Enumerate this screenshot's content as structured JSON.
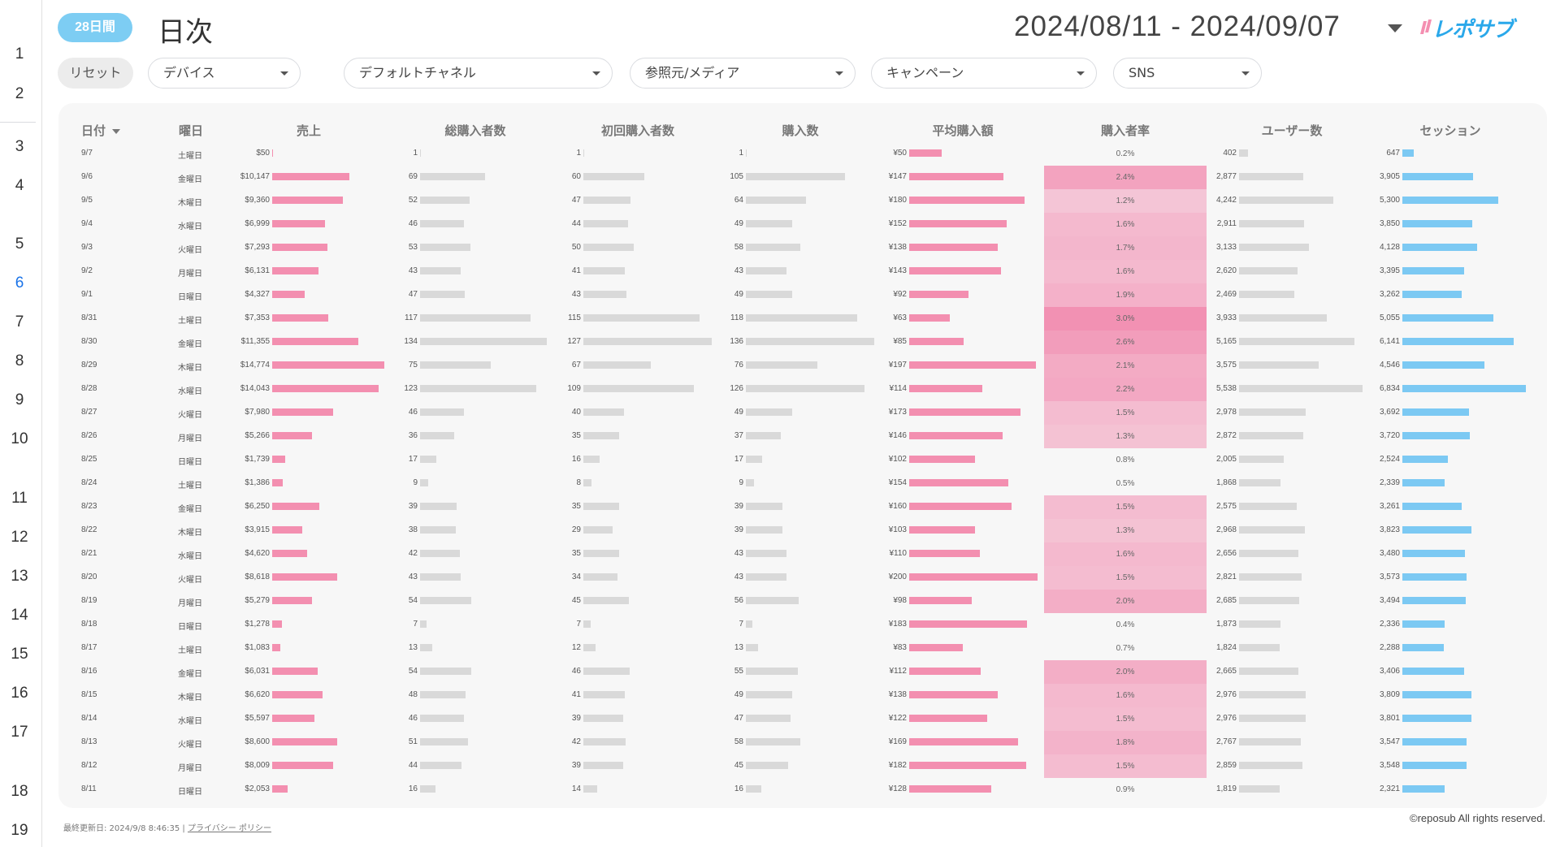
{
  "gutter_rows": [
    "1",
    "2",
    "3",
    "4",
    "5",
    "6",
    "7",
    "8",
    "9",
    "10",
    "11",
    "12",
    "13",
    "14",
    "15",
    "16",
    "17",
    "18",
    "19"
  ],
  "active_row": "6",
  "header": {
    "period_badge": "28日間",
    "title": "日次",
    "date_range": "2024/08/11 - 2024/09/07",
    "logo_text": "レポサブ"
  },
  "filters": {
    "reset_label": "リセット",
    "device": "デバイス",
    "default_channel": "デフォルトチャネル",
    "source_medium": "参照元/メディア",
    "campaign": "キャンペーン",
    "sns": "SNS"
  },
  "table": {
    "headers": {
      "date": "日付",
      "weekday": "曜日",
      "sales": "売上",
      "total_buyers": "総購入者数",
      "first_buyers": "初回購入者数",
      "purchases": "購入数",
      "avg_order": "平均購入額",
      "purchase_rate": "購入者率",
      "users": "ユーザー数",
      "sessions": "セッション"
    },
    "max": {
      "sales": 14774,
      "total_buyers": 134,
      "first_buyers": 127,
      "purchases": 136,
      "avg_order": 200,
      "users": 5538,
      "sessions": 6834,
      "rate": 3.0
    },
    "colors": {
      "pink_bar": "#f38fb0",
      "gray_bar": "#d9d9d9",
      "blue_bar": "#7cc9f3",
      "rate_heat": "#f07aa4"
    },
    "rows": [
      {
        "date": "9/7",
        "weekday": "土曜日",
        "sales": "$50",
        "sales_v": 50,
        "total_buyers": "1",
        "total_buyers_v": 1,
        "first_buyers": "1",
        "first_buyers_v": 1,
        "purchases": "1",
        "purchases_v": 1,
        "avg_order": "¥50",
        "avg_order_v": 50,
        "rate": "0.2%",
        "rate_v": 0.2,
        "users": "402",
        "users_v": 402,
        "sessions": "647",
        "sessions_v": 647
      },
      {
        "date": "9/6",
        "weekday": "金曜日",
        "sales": "$10,147",
        "sales_v": 10147,
        "total_buyers": "69",
        "total_buyers_v": 69,
        "first_buyers": "60",
        "first_buyers_v": 60,
        "purchases": "105",
        "purchases_v": 105,
        "avg_order": "¥147",
        "avg_order_v": 147,
        "rate": "2.4%",
        "rate_v": 2.4,
        "users": "2,877",
        "users_v": 2877,
        "sessions": "3,905",
        "sessions_v": 3905
      },
      {
        "date": "9/5",
        "weekday": "木曜日",
        "sales": "$9,360",
        "sales_v": 9360,
        "total_buyers": "52",
        "total_buyers_v": 52,
        "first_buyers": "47",
        "first_buyers_v": 47,
        "purchases": "64",
        "purchases_v": 64,
        "avg_order": "¥180",
        "avg_order_v": 180,
        "rate": "1.2%",
        "rate_v": 1.2,
        "users": "4,242",
        "users_v": 4242,
        "sessions": "5,300",
        "sessions_v": 5300
      },
      {
        "date": "9/4",
        "weekday": "水曜日",
        "sales": "$6,999",
        "sales_v": 6999,
        "total_buyers": "46",
        "total_buyers_v": 46,
        "first_buyers": "44",
        "first_buyers_v": 44,
        "purchases": "49",
        "purchases_v": 49,
        "avg_order": "¥152",
        "avg_order_v": 152,
        "rate": "1.6%",
        "rate_v": 1.6,
        "users": "2,911",
        "users_v": 2911,
        "sessions": "3,850",
        "sessions_v": 3850
      },
      {
        "date": "9/3",
        "weekday": "火曜日",
        "sales": "$7,293",
        "sales_v": 7293,
        "total_buyers": "53",
        "total_buyers_v": 53,
        "first_buyers": "50",
        "first_buyers_v": 50,
        "purchases": "58",
        "purchases_v": 58,
        "avg_order": "¥138",
        "avg_order_v": 138,
        "rate": "1.7%",
        "rate_v": 1.7,
        "users": "3,133",
        "users_v": 3133,
        "sessions": "4,128",
        "sessions_v": 4128
      },
      {
        "date": "9/2",
        "weekday": "月曜日",
        "sales": "$6,131",
        "sales_v": 6131,
        "total_buyers": "43",
        "total_buyers_v": 43,
        "first_buyers": "41",
        "first_buyers_v": 41,
        "purchases": "43",
        "purchases_v": 43,
        "avg_order": "¥143",
        "avg_order_v": 143,
        "rate": "1.6%",
        "rate_v": 1.6,
        "users": "2,620",
        "users_v": 2620,
        "sessions": "3,395",
        "sessions_v": 3395
      },
      {
        "date": "9/1",
        "weekday": "日曜日",
        "sales": "$4,327",
        "sales_v": 4327,
        "total_buyers": "47",
        "total_buyers_v": 47,
        "first_buyers": "43",
        "first_buyers_v": 43,
        "purchases": "49",
        "purchases_v": 49,
        "avg_order": "¥92",
        "avg_order_v": 92,
        "rate": "1.9%",
        "rate_v": 1.9,
        "users": "2,469",
        "users_v": 2469,
        "sessions": "3,262",
        "sessions_v": 3262
      },
      {
        "date": "8/31",
        "weekday": "土曜日",
        "sales": "$7,353",
        "sales_v": 7353,
        "total_buyers": "117",
        "total_buyers_v": 117,
        "first_buyers": "115",
        "first_buyers_v": 115,
        "purchases": "118",
        "purchases_v": 118,
        "avg_order": "¥63",
        "avg_order_v": 63,
        "rate": "3.0%",
        "rate_v": 3.0,
        "users": "3,933",
        "users_v": 3933,
        "sessions": "5,055",
        "sessions_v": 5055
      },
      {
        "date": "8/30",
        "weekday": "金曜日",
        "sales": "$11,355",
        "sales_v": 11355,
        "total_buyers": "134",
        "total_buyers_v": 134,
        "first_buyers": "127",
        "first_buyers_v": 127,
        "purchases": "136",
        "purchases_v": 136,
        "avg_order": "¥85",
        "avg_order_v": 85,
        "rate": "2.6%",
        "rate_v": 2.6,
        "users": "5,165",
        "users_v": 5165,
        "sessions": "6,141",
        "sessions_v": 6141
      },
      {
        "date": "8/29",
        "weekday": "木曜日",
        "sales": "$14,774",
        "sales_v": 14774,
        "total_buyers": "75",
        "total_buyers_v": 75,
        "first_buyers": "67",
        "first_buyers_v": 67,
        "purchases": "76",
        "purchases_v": 76,
        "avg_order": "¥197",
        "avg_order_v": 197,
        "rate": "2.1%",
        "rate_v": 2.1,
        "users": "3,575",
        "users_v": 3575,
        "sessions": "4,546",
        "sessions_v": 4546
      },
      {
        "date": "8/28",
        "weekday": "水曜日",
        "sales": "$14,043",
        "sales_v": 14043,
        "total_buyers": "123",
        "total_buyers_v": 123,
        "first_buyers": "109",
        "first_buyers_v": 109,
        "purchases": "126",
        "purchases_v": 126,
        "avg_order": "¥114",
        "avg_order_v": 114,
        "rate": "2.2%",
        "rate_v": 2.2,
        "users": "5,538",
        "users_v": 5538,
        "sessions": "6,834",
        "sessions_v": 6834
      },
      {
        "date": "8/27",
        "weekday": "火曜日",
        "sales": "$7,980",
        "sales_v": 7980,
        "total_buyers": "46",
        "total_buyers_v": 46,
        "first_buyers": "40",
        "first_buyers_v": 40,
        "purchases": "49",
        "purchases_v": 49,
        "avg_order": "¥173",
        "avg_order_v": 173,
        "rate": "1.5%",
        "rate_v": 1.5,
        "users": "2,978",
        "users_v": 2978,
        "sessions": "3,692",
        "sessions_v": 3692
      },
      {
        "date": "8/26",
        "weekday": "月曜日",
        "sales": "$5,266",
        "sales_v": 5266,
        "total_buyers": "36",
        "total_buyers_v": 36,
        "first_buyers": "35",
        "first_buyers_v": 35,
        "purchases": "37",
        "purchases_v": 37,
        "avg_order": "¥146",
        "avg_order_v": 146,
        "rate": "1.3%",
        "rate_v": 1.3,
        "users": "2,872",
        "users_v": 2872,
        "sessions": "3,720",
        "sessions_v": 3720
      },
      {
        "date": "8/25",
        "weekday": "日曜日",
        "sales": "$1,739",
        "sales_v": 1739,
        "total_buyers": "17",
        "total_buyers_v": 17,
        "first_buyers": "16",
        "first_buyers_v": 16,
        "purchases": "17",
        "purchases_v": 17,
        "avg_order": "¥102",
        "avg_order_v": 102,
        "rate": "0.8%",
        "rate_v": 0.8,
        "users": "2,005",
        "users_v": 2005,
        "sessions": "2,524",
        "sessions_v": 2524
      },
      {
        "date": "8/24",
        "weekday": "土曜日",
        "sales": "$1,386",
        "sales_v": 1386,
        "total_buyers": "9",
        "total_buyers_v": 9,
        "first_buyers": "8",
        "first_buyers_v": 8,
        "purchases": "9",
        "purchases_v": 9,
        "avg_order": "¥154",
        "avg_order_v": 154,
        "rate": "0.5%",
        "rate_v": 0.5,
        "users": "1,868",
        "users_v": 1868,
        "sessions": "2,339",
        "sessions_v": 2339
      },
      {
        "date": "8/23",
        "weekday": "金曜日",
        "sales": "$6,250",
        "sales_v": 6250,
        "total_buyers": "39",
        "total_buyers_v": 39,
        "first_buyers": "35",
        "first_buyers_v": 35,
        "purchases": "39",
        "purchases_v": 39,
        "avg_order": "¥160",
        "avg_order_v": 160,
        "rate": "1.5%",
        "rate_v": 1.5,
        "users": "2,575",
        "users_v": 2575,
        "sessions": "3,261",
        "sessions_v": 3261
      },
      {
        "date": "8/22",
        "weekday": "木曜日",
        "sales": "$3,915",
        "sales_v": 3915,
        "total_buyers": "38",
        "total_buyers_v": 38,
        "first_buyers": "29",
        "first_buyers_v": 29,
        "purchases": "39",
        "purchases_v": 39,
        "avg_order": "¥103",
        "avg_order_v": 103,
        "rate": "1.3%",
        "rate_v": 1.3,
        "users": "2,968",
        "users_v": 2968,
        "sessions": "3,823",
        "sessions_v": 3823
      },
      {
        "date": "8/21",
        "weekday": "水曜日",
        "sales": "$4,620",
        "sales_v": 4620,
        "total_buyers": "42",
        "total_buyers_v": 42,
        "first_buyers": "35",
        "first_buyers_v": 35,
        "purchases": "43",
        "purchases_v": 43,
        "avg_order": "¥110",
        "avg_order_v": 110,
        "rate": "1.6%",
        "rate_v": 1.6,
        "users": "2,656",
        "users_v": 2656,
        "sessions": "3,480",
        "sessions_v": 3480
      },
      {
        "date": "8/20",
        "weekday": "火曜日",
        "sales": "$8,618",
        "sales_v": 8618,
        "total_buyers": "43",
        "total_buyers_v": 43,
        "first_buyers": "34",
        "first_buyers_v": 34,
        "purchases": "43",
        "purchases_v": 43,
        "avg_order": "¥200",
        "avg_order_v": 200,
        "rate": "1.5%",
        "rate_v": 1.5,
        "users": "2,821",
        "users_v": 2821,
        "sessions": "3,573",
        "sessions_v": 3573
      },
      {
        "date": "8/19",
        "weekday": "月曜日",
        "sales": "$5,279",
        "sales_v": 5279,
        "total_buyers": "54",
        "total_buyers_v": 54,
        "first_buyers": "45",
        "first_buyers_v": 45,
        "purchases": "56",
        "purchases_v": 56,
        "avg_order": "¥98",
        "avg_order_v": 98,
        "rate": "2.0%",
        "rate_v": 2.0,
        "users": "2,685",
        "users_v": 2685,
        "sessions": "3,494",
        "sessions_v": 3494
      },
      {
        "date": "8/18",
        "weekday": "日曜日",
        "sales": "$1,278",
        "sales_v": 1278,
        "total_buyers": "7",
        "total_buyers_v": 7,
        "first_buyers": "7",
        "first_buyers_v": 7,
        "purchases": "7",
        "purchases_v": 7,
        "avg_order": "¥183",
        "avg_order_v": 183,
        "rate": "0.4%",
        "rate_v": 0.4,
        "users": "1,873",
        "users_v": 1873,
        "sessions": "2,336",
        "sessions_v": 2336
      },
      {
        "date": "8/17",
        "weekday": "土曜日",
        "sales": "$1,083",
        "sales_v": 1083,
        "total_buyers": "13",
        "total_buyers_v": 13,
        "first_buyers": "12",
        "first_buyers_v": 12,
        "purchases": "13",
        "purchases_v": 13,
        "avg_order": "¥83",
        "avg_order_v": 83,
        "rate": "0.7%",
        "rate_v": 0.7,
        "users": "1,824",
        "users_v": 1824,
        "sessions": "2,288",
        "sessions_v": 2288
      },
      {
        "date": "8/16",
        "weekday": "金曜日",
        "sales": "$6,031",
        "sales_v": 6031,
        "total_buyers": "54",
        "total_buyers_v": 54,
        "first_buyers": "46",
        "first_buyers_v": 46,
        "purchases": "55",
        "purchases_v": 55,
        "avg_order": "¥112",
        "avg_order_v": 112,
        "rate": "2.0%",
        "rate_v": 2.0,
        "users": "2,665",
        "users_v": 2665,
        "sessions": "3,406",
        "sessions_v": 3406
      },
      {
        "date": "8/15",
        "weekday": "木曜日",
        "sales": "$6,620",
        "sales_v": 6620,
        "total_buyers": "48",
        "total_buyers_v": 48,
        "first_buyers": "41",
        "first_buyers_v": 41,
        "purchases": "49",
        "purchases_v": 49,
        "avg_order": "¥138",
        "avg_order_v": 138,
        "rate": "1.6%",
        "rate_v": 1.6,
        "users": "2,976",
        "users_v": 2976,
        "sessions": "3,809",
        "sessions_v": 3809
      },
      {
        "date": "8/14",
        "weekday": "水曜日",
        "sales": "$5,597",
        "sales_v": 5597,
        "total_buyers": "46",
        "total_buyers_v": 46,
        "first_buyers": "39",
        "first_buyers_v": 39,
        "purchases": "47",
        "purchases_v": 47,
        "avg_order": "¥122",
        "avg_order_v": 122,
        "rate": "1.5%",
        "rate_v": 1.5,
        "users": "2,976",
        "users_v": 2976,
        "sessions": "3,801",
        "sessions_v": 3801
      },
      {
        "date": "8/13",
        "weekday": "火曜日",
        "sales": "$8,600",
        "sales_v": 8600,
        "total_buyers": "51",
        "total_buyers_v": 51,
        "first_buyers": "42",
        "first_buyers_v": 42,
        "purchases": "58",
        "purchases_v": 58,
        "avg_order": "¥169",
        "avg_order_v": 169,
        "rate": "1.8%",
        "rate_v": 1.8,
        "users": "2,767",
        "users_v": 2767,
        "sessions": "3,547",
        "sessions_v": 3547
      },
      {
        "date": "8/12",
        "weekday": "月曜日",
        "sales": "$8,009",
        "sales_v": 8009,
        "total_buyers": "44",
        "total_buyers_v": 44,
        "first_buyers": "39",
        "first_buyers_v": 39,
        "purchases": "45",
        "purchases_v": 45,
        "avg_order": "¥182",
        "avg_order_v": 182,
        "rate": "1.5%",
        "rate_v": 1.5,
        "users": "2,859",
        "users_v": 2859,
        "sessions": "3,548",
        "sessions_v": 3548
      },
      {
        "date": "8/11",
        "weekday": "日曜日",
        "sales": "$2,053",
        "sales_v": 2053,
        "total_buyers": "16",
        "total_buyers_v": 16,
        "first_buyers": "14",
        "first_buyers_v": 14,
        "purchases": "16",
        "purchases_v": 16,
        "avg_order": "¥128",
        "avg_order_v": 128,
        "rate": "0.9%",
        "rate_v": 0.9,
        "users": "1,819",
        "users_v": 1819,
        "sessions": "2,321",
        "sessions_v": 2321
      }
    ]
  },
  "footer": {
    "updated": "最終更新日: 2024/9/8 8:46:35",
    "separator": "|",
    "privacy_link": "プライバシー ポリシー",
    "copyright": "©reposub All rights reserved."
  }
}
